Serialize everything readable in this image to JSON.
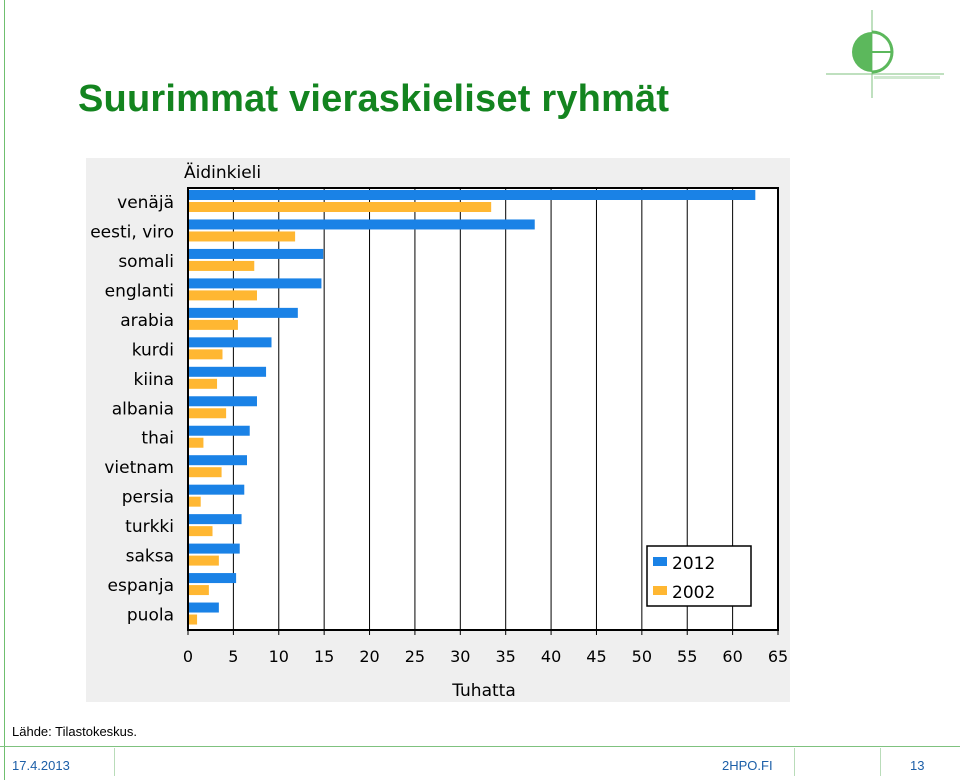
{
  "slide": {
    "title": "Suurimmat vieraskieliset ryhmät",
    "source": "Lähde: Tilastokeskus.",
    "footer_date": "17.4.2013",
    "footer_site": "2HPO.FI",
    "page_number": "13"
  },
  "colors": {
    "title": "#13841f",
    "series_2012": "#1a82e6",
    "series_2002": "#ffb732"
  },
  "chart_data": {
    "type": "bar",
    "orientation": "horizontal",
    "title": "Äidinkieli",
    "xlabel": "Tuhatta",
    "ylabel": "",
    "xlim": [
      0,
      65
    ],
    "x_ticks": [
      0,
      5,
      10,
      15,
      20,
      25,
      30,
      35,
      40,
      45,
      50,
      55,
      60,
      65
    ],
    "grid": true,
    "legend_position": "bottom-right",
    "categories": [
      "venäjä",
      "eesti, viro",
      "somali",
      "englanti",
      "arabia",
      "kurdi",
      "kiina",
      "albania",
      "thai",
      "vietnam",
      "persia",
      "turkki",
      "saksa",
      "espanja",
      "puola"
    ],
    "series": [
      {
        "name": "2012",
        "color": "#1a82e6",
        "values": [
          62.5,
          38.2,
          14.9,
          14.7,
          12.1,
          9.2,
          8.6,
          7.6,
          6.8,
          6.5,
          6.2,
          5.9,
          5.7,
          5.3,
          3.4
        ]
      },
      {
        "name": "2002",
        "color": "#ffb732",
        "values": [
          33.4,
          11.8,
          7.3,
          7.6,
          5.5,
          3.8,
          3.2,
          4.2,
          1.7,
          3.7,
          1.4,
          2.7,
          3.4,
          2.3,
          1.0
        ]
      }
    ]
  }
}
